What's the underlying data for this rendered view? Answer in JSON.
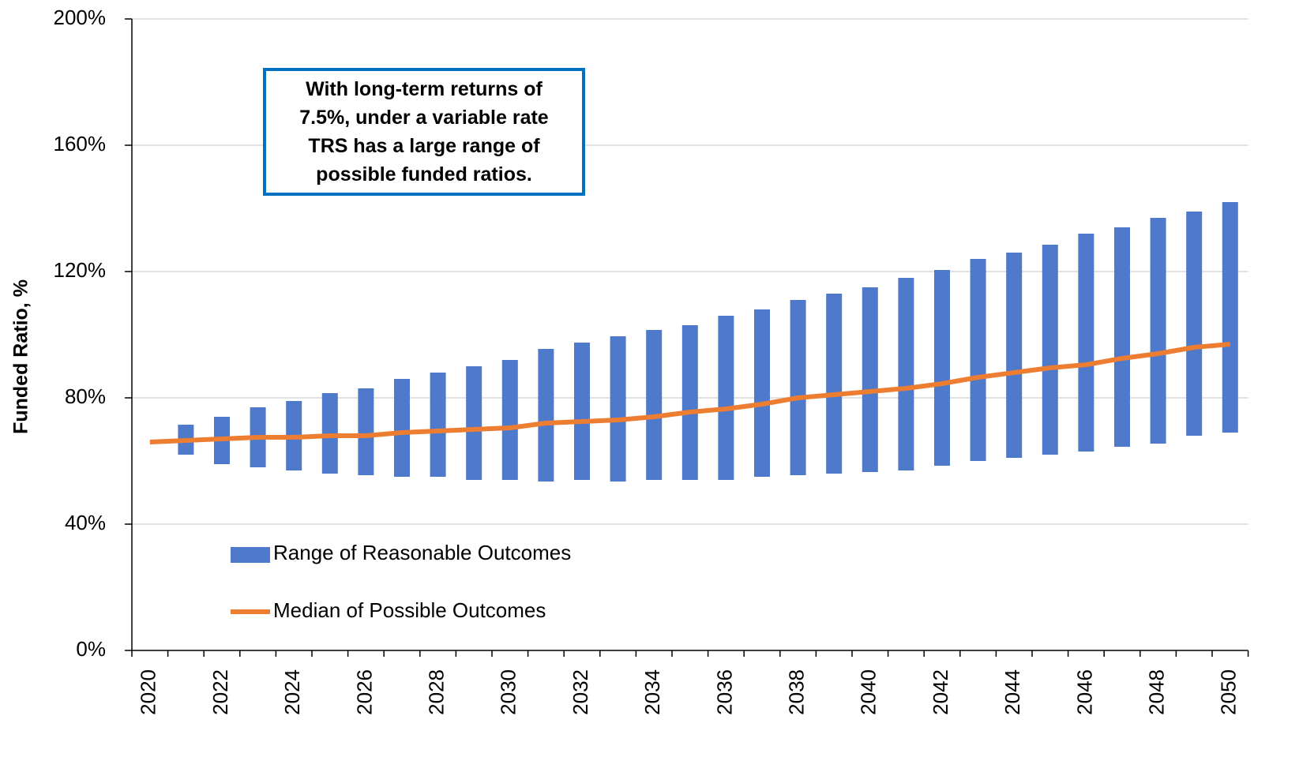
{
  "chart_data": {
    "type": "range-line",
    "ylabel": "Funded Ratio, %",
    "annotation": [
      "With long-term returns of",
      "7.5%, under a variable rate",
      "TRS has a large range of",
      "possible funded ratios."
    ],
    "categories": [
      "2020",
      null,
      "2022",
      null,
      "2024",
      null,
      "2026",
      null,
      "2028",
      null,
      "2030",
      null,
      "2032",
      null,
      "2034",
      null,
      "2036",
      null,
      "2038",
      null,
      "2040",
      null,
      "2042",
      null,
      "2044",
      null,
      "2046",
      null,
      "2048",
      null,
      "2050"
    ],
    "series": [
      {
        "name": "Range of Reasonable Outcomes",
        "color": "#4f7acb",
        "low": [
          null,
          62,
          59,
          58,
          57,
          56,
          55.5,
          55,
          55,
          54,
          54,
          53.5,
          54,
          53.5,
          54,
          54,
          54,
          55,
          55.5,
          56,
          56.5,
          57,
          58.5,
          60,
          61,
          62,
          63,
          64.5,
          65.5,
          68,
          69
        ],
        "high": [
          null,
          71.5,
          74,
          77,
          79,
          81.5,
          83,
          86,
          88,
          90,
          92,
          95.5,
          97.5,
          99.5,
          101.5,
          103,
          106,
          108,
          111,
          113,
          115,
          118,
          120.5,
          124,
          126,
          128.5,
          132,
          134,
          137,
          139,
          142
        ]
      },
      {
        "name": "Median of Possible Outcomes",
        "color": "#ed7d31",
        "values": [
          66,
          66.5,
          67,
          67.5,
          67.5,
          68,
          68,
          69,
          69.5,
          70,
          70.5,
          72,
          72.5,
          73,
          74,
          75.5,
          76.5,
          78,
          80,
          81,
          82,
          83,
          84.5,
          86.5,
          88,
          89.5,
          90.5,
          92.5,
          94,
          96,
          97
        ]
      }
    ],
    "ylim": [
      0,
      200
    ],
    "yticks": [
      {
        "value": 0,
        "label": "0%"
      },
      {
        "value": 40,
        "label": "40%"
      },
      {
        "value": 80,
        "label": "80%"
      },
      {
        "value": 120,
        "label": "120%"
      },
      {
        "value": 160,
        "label": "160%"
      },
      {
        "value": 200,
        "label": "200%"
      }
    ],
    "grid": true,
    "legend": "lower-left"
  }
}
